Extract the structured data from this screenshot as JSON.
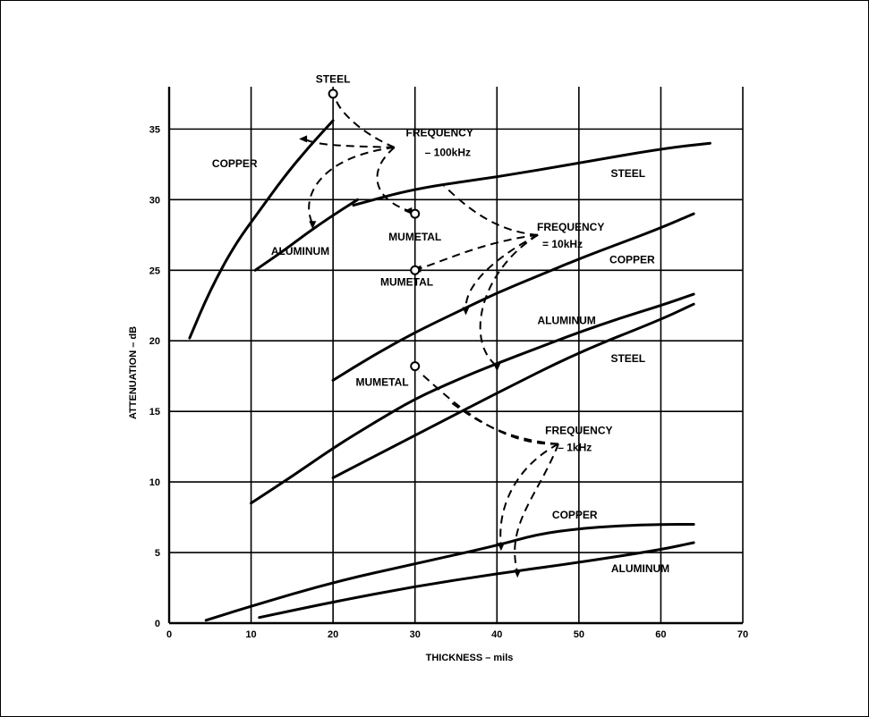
{
  "chart_data": {
    "type": "line",
    "xlabel": "THICKNESS – mils",
    "ylabel": "ATTENUATION – dB",
    "xlim": [
      0,
      70
    ],
    "ylim": [
      0,
      38
    ],
    "xticks": [
      0,
      10,
      20,
      30,
      40,
      50,
      60,
      70
    ],
    "yticks": [
      0,
      5,
      10,
      15,
      20,
      25,
      30,
      35
    ],
    "grid": true,
    "series": [
      {
        "name": "COPPER",
        "group": "FREQUENCY – 100kHz",
        "x": [
          2.5,
          5,
          8,
          11,
          14,
          17,
          20
        ],
        "y": [
          20.2,
          23.6,
          26.8,
          29.2,
          31.6,
          33.7,
          35.6
        ]
      },
      {
        "name": "ALUMINUM",
        "group": "FREQUENCY – 100kHz",
        "x": [
          10.5,
          14,
          17,
          20,
          23
        ],
        "y": [
          25.0,
          26.4,
          27.7,
          28.9,
          30.0
        ]
      },
      {
        "name": "STEEL",
        "group": "FREQUENCY – 10kHz",
        "x": [
          22.5,
          30,
          40,
          50,
          60,
          66
        ],
        "y": [
          29.6,
          30.8,
          31.6,
          32.6,
          33.6,
          34.0
        ]
      },
      {
        "name": "COPPER",
        "group": "FREQUENCY – 10kHz",
        "x": [
          20,
          25,
          30,
          35,
          40,
          45,
          50,
          55,
          60,
          64
        ],
        "y": [
          17.2,
          19.0,
          20.6,
          22.0,
          23.4,
          24.6,
          25.8,
          26.9,
          28.0,
          29.0
        ]
      },
      {
        "name": "ALUMINUM",
        "group": "FREQUENCY – 10kHz",
        "x": [
          10,
          15,
          20,
          25,
          30,
          35,
          40,
          45,
          50,
          55,
          60,
          64
        ],
        "y": [
          8.5,
          10.4,
          12.4,
          14.2,
          15.9,
          17.2,
          18.4,
          19.5,
          20.6,
          21.6,
          22.5,
          23.3
        ]
      },
      {
        "name": "STEEL",
        "group": "FREQUENCY – 10kHz",
        "x": [
          20,
          30,
          40,
          50,
          60,
          64
        ],
        "y": [
          10.3,
          13.3,
          16.3,
          19.2,
          21.5,
          22.6
        ]
      },
      {
        "name": "COPPER",
        "group": "FREQUENCY – 1kHz",
        "x": [
          4.5,
          10,
          20,
          30,
          40,
          45,
          50,
          55,
          60,
          64
        ],
        "y": [
          0.2,
          1.2,
          2.9,
          4.2,
          5.5,
          6.3,
          6.7,
          6.9,
          7.0,
          7.0
        ]
      },
      {
        "name": "ALUMINUM",
        "group": "FREQUENCY – 1kHz",
        "x": [
          11,
          20,
          30,
          40,
          50,
          60,
          64
        ],
        "y": [
          0.4,
          1.5,
          2.6,
          3.5,
          4.3,
          5.2,
          5.7
        ]
      }
    ],
    "markers": [
      {
        "name": "STEEL",
        "group": "FREQUENCY – 100kHz",
        "x": 20,
        "y": 37.5
      },
      {
        "name": "MUMETAL",
        "group": "FREQUENCY – 100kHz",
        "x": 30,
        "y": 29.0
      },
      {
        "name": "MUMETAL",
        "group": "FREQUENCY – 10kHz",
        "x": 30,
        "y": 25.0
      },
      {
        "name": "MUMETAL",
        "group": "FREQUENCY – 1kHz",
        "x": 30,
        "y": 18.2
      }
    ],
    "annotations": [
      {
        "text": "STEEL",
        "x": 20,
        "y": 38.3
      },
      {
        "text": "COPPER",
        "x": 8,
        "y": 32.3
      },
      {
        "text": "FREQUENCY",
        "x": 33,
        "y": 34.5
      },
      {
        "text": "– 100kHz",
        "x": 34,
        "y": 33.1
      },
      {
        "text": "STEEL",
        "x": 56,
        "y": 31.6
      },
      {
        "text": "MUMETAL",
        "x": 30,
        "y": 27.1
      },
      {
        "text": "ALUMINUM",
        "x": 16,
        "y": 26.1
      },
      {
        "text": "FREQUENCY",
        "x": 49,
        "y": 27.8
      },
      {
        "text": "= 10kHz",
        "x": 48,
        "y": 26.6
      },
      {
        "text": "COPPER",
        "x": 56.5,
        "y": 25.5
      },
      {
        "text": "MUMETAL",
        "x": 29,
        "y": 23.9
      },
      {
        "text": "ALUMINUM",
        "x": 48.5,
        "y": 21.2
      },
      {
        "text": "STEEL",
        "x": 56,
        "y": 18.5
      },
      {
        "text": "MUMETAL",
        "x": 26,
        "y": 16.8
      },
      {
        "text": "FREQUENCY",
        "x": 50,
        "y": 13.4
      },
      {
        "text": "– 1kHz",
        "x": 49.5,
        "y": 12.2
      },
      {
        "text": "COPPER",
        "x": 49.5,
        "y": 7.4
      },
      {
        "text": "ALUMINUM",
        "x": 57.5,
        "y": 3.6
      }
    ]
  }
}
